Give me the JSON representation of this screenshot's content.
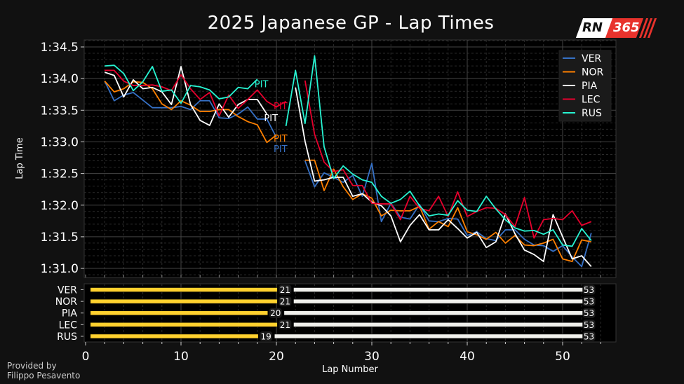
{
  "title": "2025 Japanese GP - Lap Times",
  "credit": {
    "line1": "Provided by",
    "line2": "Filippo Pesavento"
  },
  "logo": {
    "text1": "RN",
    "text2": "365"
  },
  "chart_data": [
    {
      "type": "line",
      "title": "2025 Japanese GP - Lap Times",
      "xlabel": "Lap Number",
      "ylabel": "Lap Time",
      "xlim": [
        0,
        55.6
      ],
      "ylim": [
        90.87,
        94.6
      ],
      "yticks": [
        {
          "value": 94.5,
          "label": "1:34.5"
        },
        {
          "value": 94.0,
          "label": "1:34.0"
        },
        {
          "value": 93.5,
          "label": "1:33.5"
        },
        {
          "value": 93.0,
          "label": "1:33.0"
        },
        {
          "value": 92.5,
          "label": "1:32.5"
        },
        {
          "value": 92.0,
          "label": "1:32.0"
        },
        {
          "value": 91.5,
          "label": "1:31.5"
        },
        {
          "value": 91.0,
          "label": "1:31.0"
        }
      ],
      "grid": true,
      "legend": "top-right",
      "pit_label": "PIT",
      "series": [
        {
          "name": "VER",
          "color": "#3671c6",
          "stint1_start": 2,
          "stint1": [
            93.96,
            93.65,
            93.74,
            93.78,
            93.66,
            93.54,
            93.54,
            93.54,
            93.56,
            93.51,
            93.65,
            93.65,
            93.38,
            93.37,
            93.44,
            93.55,
            93.36,
            93.36,
            93.07
          ],
          "pit": {
            "lap": 20,
            "value": 93.0
          },
          "stint2_start": 23,
          "stint2": [
            92.7,
            92.29,
            92.51,
            92.44,
            92.36,
            92.47,
            92.14,
            92.66,
            91.74,
            92.03,
            91.81,
            91.78,
            92.01,
            91.75,
            91.74,
            91.79,
            91.78,
            91.52,
            91.58,
            91.47,
            91.44,
            91.61,
            91.61,
            91.46,
            91.37,
            91.36,
            91.27,
            91.36,
            91.18,
            91.03,
            91.56
          ]
        },
        {
          "name": "NOR",
          "color": "#ff8000",
          "stint1_start": 2,
          "stint1": [
            93.96,
            93.79,
            93.84,
            93.95,
            93.94,
            93.84,
            93.6,
            93.51,
            93.65,
            93.58,
            93.48,
            93.48,
            93.51,
            93.51,
            93.4,
            93.32,
            93.27,
            92.99,
            93.11
          ],
          "pit": {
            "lap": 20,
            "value": 93.06
          },
          "stint2_start": 23,
          "stint2": [
            92.71,
            92.71,
            92.23,
            92.57,
            92.29,
            92.09,
            92.18,
            92.11,
            91.83,
            91.92,
            91.91,
            91.91,
            91.98,
            91.62,
            91.74,
            91.66,
            91.96,
            91.58,
            91.53,
            91.46,
            91.57,
            91.4,
            91.52,
            91.37,
            91.36,
            91.4,
            91.46,
            91.15,
            91.11,
            91.45,
            91.42
          ]
        },
        {
          "name": "PIA",
          "color": "#ffffff",
          "stint1_start": 2,
          "stint1": [
            94.1,
            94.05,
            93.71,
            93.98,
            93.84,
            93.86,
            93.79,
            93.59,
            94.19,
            93.59,
            93.34,
            93.26,
            93.6,
            93.39,
            93.59,
            93.67,
            93.67,
            93.44
          ],
          "pit": {
            "lap": 19,
            "value": 93.38
          },
          "stint2_start": 22,
          "stint2": [
            93.86,
            93.01,
            92.38,
            92.4,
            92.44,
            92.44,
            92.14,
            92.18,
            92.05,
            91.99,
            91.83,
            91.42,
            91.68,
            91.85,
            91.61,
            91.61,
            91.77,
            91.63,
            91.48,
            91.57,
            91.33,
            91.42,
            91.86,
            91.55,
            91.29,
            91.22,
            91.11,
            91.85,
            91.5,
            91.15,
            91.2,
            91.03
          ]
        },
        {
          "name": "LEC",
          "color": "#e8002d",
          "stint1_start": 2,
          "stint1": [
            94.13,
            94.13,
            93.96,
            93.89,
            93.89,
            93.9,
            93.87,
            93.81,
            94.06,
            93.84,
            93.67,
            93.78,
            93.41,
            93.74,
            93.53,
            93.67,
            93.82,
            93.64,
            93.55,
            93.64
          ],
          "pit": {
            "lap": 20,
            "value": 93.57
          },
          "stint2_start": 23,
          "stint2": [
            93.97,
            93.12,
            92.68,
            92.53,
            92.56,
            92.31,
            92.31,
            92.03,
            92.02,
            92.02,
            91.77,
            92.14,
            91.95,
            91.91,
            92.14,
            91.82,
            92.21,
            91.82,
            91.9,
            91.96,
            91.95,
            91.85,
            91.66,
            92.12,
            91.48,
            91.77,
            91.79,
            91.77,
            91.91,
            91.68,
            91.74
          ]
        },
        {
          "name": "RUS",
          "color": "#27f4d2",
          "stint1_start": 2,
          "stint1": [
            94.2,
            94.21,
            94.08,
            93.81,
            93.95,
            94.19,
            93.8,
            93.82,
            93.61,
            93.89,
            93.87,
            93.82,
            93.68,
            93.71,
            93.86,
            93.84,
            93.99
          ],
          "pit": {
            "lap": 18,
            "value": 93.92
          },
          "stint2_start": 21,
          "stint2": [
            93.25,
            94.13,
            93.29,
            94.36,
            92.92,
            92.42,
            92.62,
            92.49,
            92.4,
            92.36,
            92.14,
            92.03,
            92.09,
            92.22,
            91.99,
            91.83,
            91.86,
            91.84,
            92.07,
            91.92,
            91.9,
            92.14,
            91.94,
            91.77,
            91.64,
            91.59,
            91.6,
            91.54,
            91.61,
            91.37,
            91.35,
            91.63,
            91.44
          ]
        }
      ]
    },
    {
      "type": "bar",
      "subtype": "stint-timeline",
      "xlabel": "Lap Number",
      "xlim": [
        0,
        55.6
      ],
      "xticks": [
        0,
        10,
        20,
        30,
        40,
        50
      ],
      "drivers": [
        "VER",
        "NOR",
        "PIA",
        "LEC",
        "RUS"
      ],
      "stints": [
        [
          {
            "end_lap": 21,
            "label": "21",
            "color": "#ffd12e"
          },
          {
            "end_lap": 53,
            "label": "53",
            "color": "#f0f0ec"
          }
        ],
        [
          {
            "end_lap": 21,
            "label": "21",
            "color": "#ffd12e"
          },
          {
            "end_lap": 53,
            "label": "53",
            "color": "#f0f0ec"
          }
        ],
        [
          {
            "end_lap": 20,
            "label": "20",
            "color": "#ffd12e"
          },
          {
            "end_lap": 53,
            "label": "53",
            "color": "#f0f0ec"
          }
        ],
        [
          {
            "end_lap": 21,
            "label": "21",
            "color": "#ffd12e"
          },
          {
            "end_lap": 53,
            "label": "53",
            "color": "#f0f0ec"
          }
        ],
        [
          {
            "end_lap": 19,
            "label": "19",
            "color": "#ffd12e"
          },
          {
            "end_lap": 53,
            "label": "53",
            "color": "#f0f0ec"
          }
        ]
      ]
    }
  ]
}
